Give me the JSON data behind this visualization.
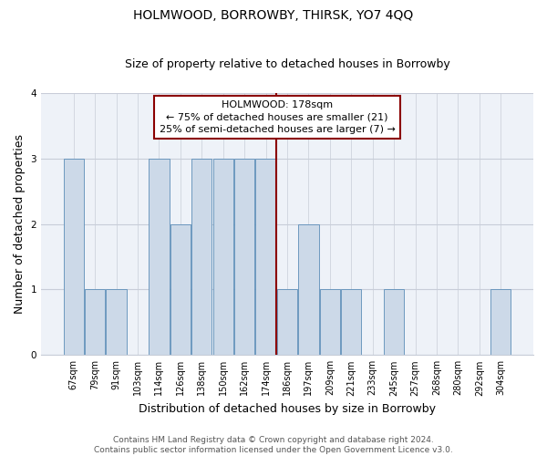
{
  "title": "HOLMWOOD, BORROWBY, THIRSK, YO7 4QQ",
  "subtitle": "Size of property relative to detached houses in Borrowby",
  "xlabel": "Distribution of detached houses by size in Borrowby",
  "ylabel": "Number of detached properties",
  "footer_line1": "Contains HM Land Registry data © Crown copyright and database right 2024.",
  "footer_line2": "Contains public sector information licensed under the Open Government Licence v3.0.",
  "categories": [
    "67sqm",
    "79sqm",
    "91sqm",
    "103sqm",
    "114sqm",
    "126sqm",
    "138sqm",
    "150sqm",
    "162sqm",
    "174sqm",
    "186sqm",
    "197sqm",
    "209sqm",
    "221sqm",
    "233sqm",
    "245sqm",
    "257sqm",
    "268sqm",
    "280sqm",
    "292sqm",
    "304sqm"
  ],
  "values": [
    3,
    1,
    1,
    0,
    3,
    2,
    3,
    3,
    3,
    3,
    1,
    2,
    1,
    1,
    0,
    1,
    0,
    0,
    0,
    0,
    1
  ],
  "bar_color": "#ccd9e8",
  "bar_edge_color": "#5b8db8",
  "vline_x_index": 9.5,
  "vline_color": "#8b0000",
  "annotation_box_text": "HOLMWOOD: 178sqm\n← 75% of detached houses are smaller (21)\n25% of semi-detached houses are larger (7) →",
  "ylim": [
    0,
    4
  ],
  "yticks": [
    0,
    1,
    2,
    3,
    4
  ],
  "bg_color": "#eef2f8",
  "grid_color": "#c8cdd8",
  "title_fontsize": 10,
  "subtitle_fontsize": 9,
  "axis_label_fontsize": 9,
  "tick_fontsize": 7,
  "annotation_fontsize": 8,
  "footer_fontsize": 6.5
}
